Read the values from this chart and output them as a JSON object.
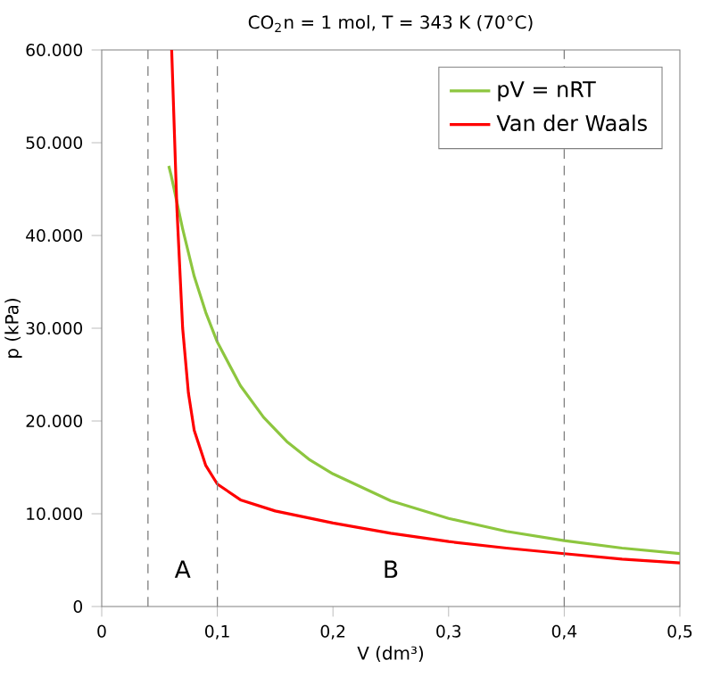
{
  "chart_data": {
    "type": "line",
    "title": "CO$_{2}$n = 1 mol, T = 343 K (70°C)",
    "xlabel": "V (dm³)",
    "ylabel": "p (kPa)",
    "xlim": [
      0,
      0.5
    ],
    "ylim": [
      0,
      60000
    ],
    "xticks": [
      0,
      {
        "value": 0.1,
        "label": "0,1"
      },
      {
        "value": 0.2,
        "label": "0,2"
      },
      {
        "value": 0.3,
        "label": "0,3"
      },
      {
        "value": 0.4,
        "label": "0,4"
      },
      {
        "value": 0.5,
        "label": "0,5"
      }
    ],
    "yticks": [
      0,
      {
        "value": 10000,
        "label": "10.000"
      },
      {
        "value": 20000,
        "label": "20.000"
      },
      {
        "value": 30000,
        "label": "30.000"
      },
      {
        "value": 40000,
        "label": "40.000"
      },
      {
        "value": 50000,
        "label": "50.000"
      },
      {
        "value": 60000,
        "label": "60.000"
      }
    ],
    "series": [
      {
        "name": "pV = nRT",
        "color": "#8dc63f",
        "x": [
          0.058,
          0.06,
          0.07,
          0.08,
          0.09,
          0.1,
          0.12,
          0.14,
          0.16,
          0.18,
          0.2,
          0.25,
          0.3,
          0.35,
          0.4,
          0.45,
          0.5
        ],
        "values": [
          47500,
          46500,
          40700,
          35600,
          31700,
          28500,
          23800,
          20400,
          17800,
          15800,
          14300,
          11400,
          9500,
          8100,
          7100,
          6300,
          5700
        ]
      },
      {
        "name": "Van der Waals",
        "color": "#ff0000",
        "x": [
          0.0605,
          0.065,
          0.07,
          0.075,
          0.08,
          0.09,
          0.1,
          0.12,
          0.15,
          0.2,
          0.25,
          0.3,
          0.35,
          0.4,
          0.45,
          0.5
        ],
        "values": [
          60000,
          43000,
          30000,
          23000,
          19000,
          15200,
          13200,
          11500,
          10300,
          9000,
          7900,
          7000,
          6300,
          5700,
          5100,
          4700
        ]
      }
    ],
    "ref_lines": [
      {
        "axis": "x",
        "value": 0.04,
        "color": "#808080",
        "line_style": "dashed"
      },
      {
        "axis": "x",
        "value": 0.1,
        "color": "#808080",
        "line_style": "dashed"
      },
      {
        "axis": "x",
        "value": 0.4,
        "color": "#808080",
        "line_style": "dashed"
      }
    ],
    "annotations": [
      "A",
      "B"
    ],
    "legend": "top right",
    "grid": false,
    "line_style": "solid",
    "marker": "none"
  }
}
